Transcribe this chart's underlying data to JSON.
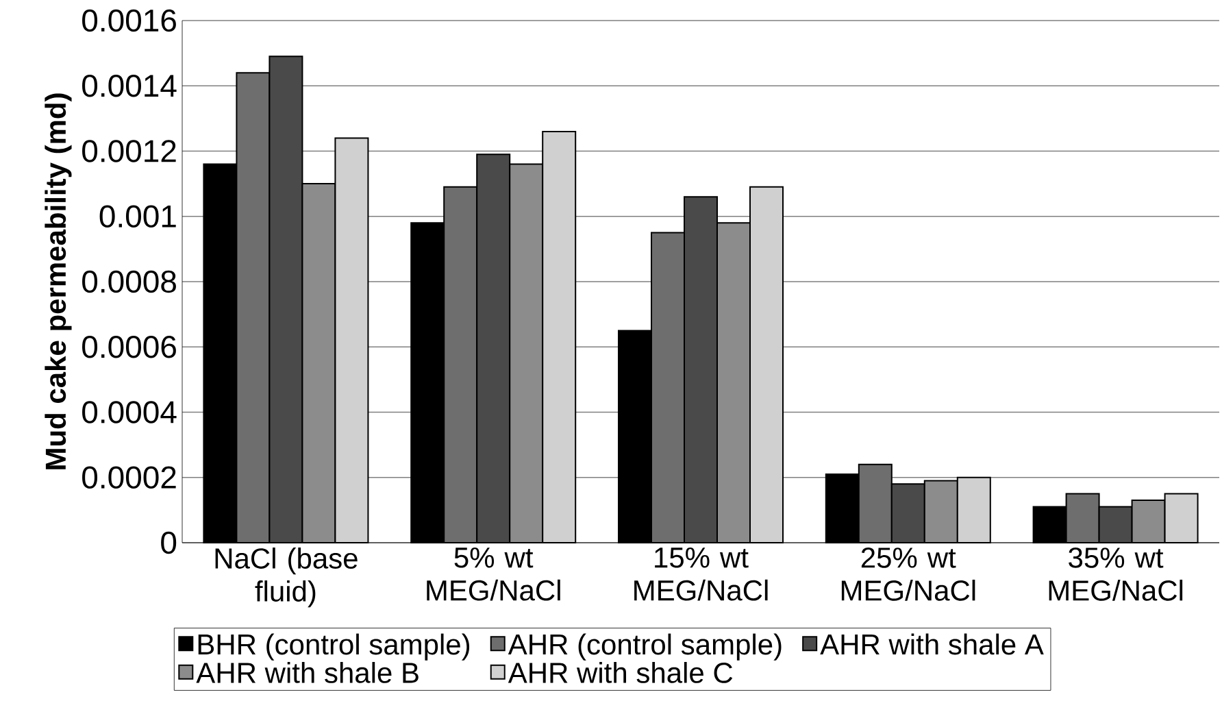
{
  "chart_data": {
    "type": "bar",
    "ylabel": "Mud cake permeability (md)",
    "categories": [
      "NaCl (base fluid)",
      "5% wt MEG/NaCl",
      "15% wt MEG/NaCl",
      "25% wt MEG/NaCl",
      "35% wt MEG/NaCl"
    ],
    "series": [
      {
        "name": "BHR (control sample)",
        "color": "#000000",
        "values": [
          0.00116,
          0.00098,
          0.00065,
          0.00021,
          0.00011
        ]
      },
      {
        "name": "AHR (control sample)",
        "color": "#6e6e6e",
        "values": [
          0.00144,
          0.00109,
          0.00095,
          0.00024,
          0.00015
        ]
      },
      {
        "name": "AHR with shale A",
        "color": "#4a4a4a",
        "values": [
          0.00149,
          0.00119,
          0.00106,
          0.00018,
          0.00011
        ]
      },
      {
        "name": "AHR with shale B",
        "color": "#8c8c8c",
        "values": [
          0.0011,
          0.00116,
          0.00098,
          0.00019,
          0.00013
        ]
      },
      {
        "name": "AHR with shale C",
        "color": "#d0d0d0",
        "values": [
          0.00124,
          0.00126,
          0.00109,
          0.0002,
          0.00015
        ]
      }
    ],
    "ylim": [
      0,
      0.0016
    ],
    "yticks": [
      0,
      0.0002,
      0.0004,
      0.0006,
      0.0008,
      0.001,
      0.0012,
      0.0014,
      0.0016
    ],
    "grid": "y",
    "legend": "bottom"
  }
}
